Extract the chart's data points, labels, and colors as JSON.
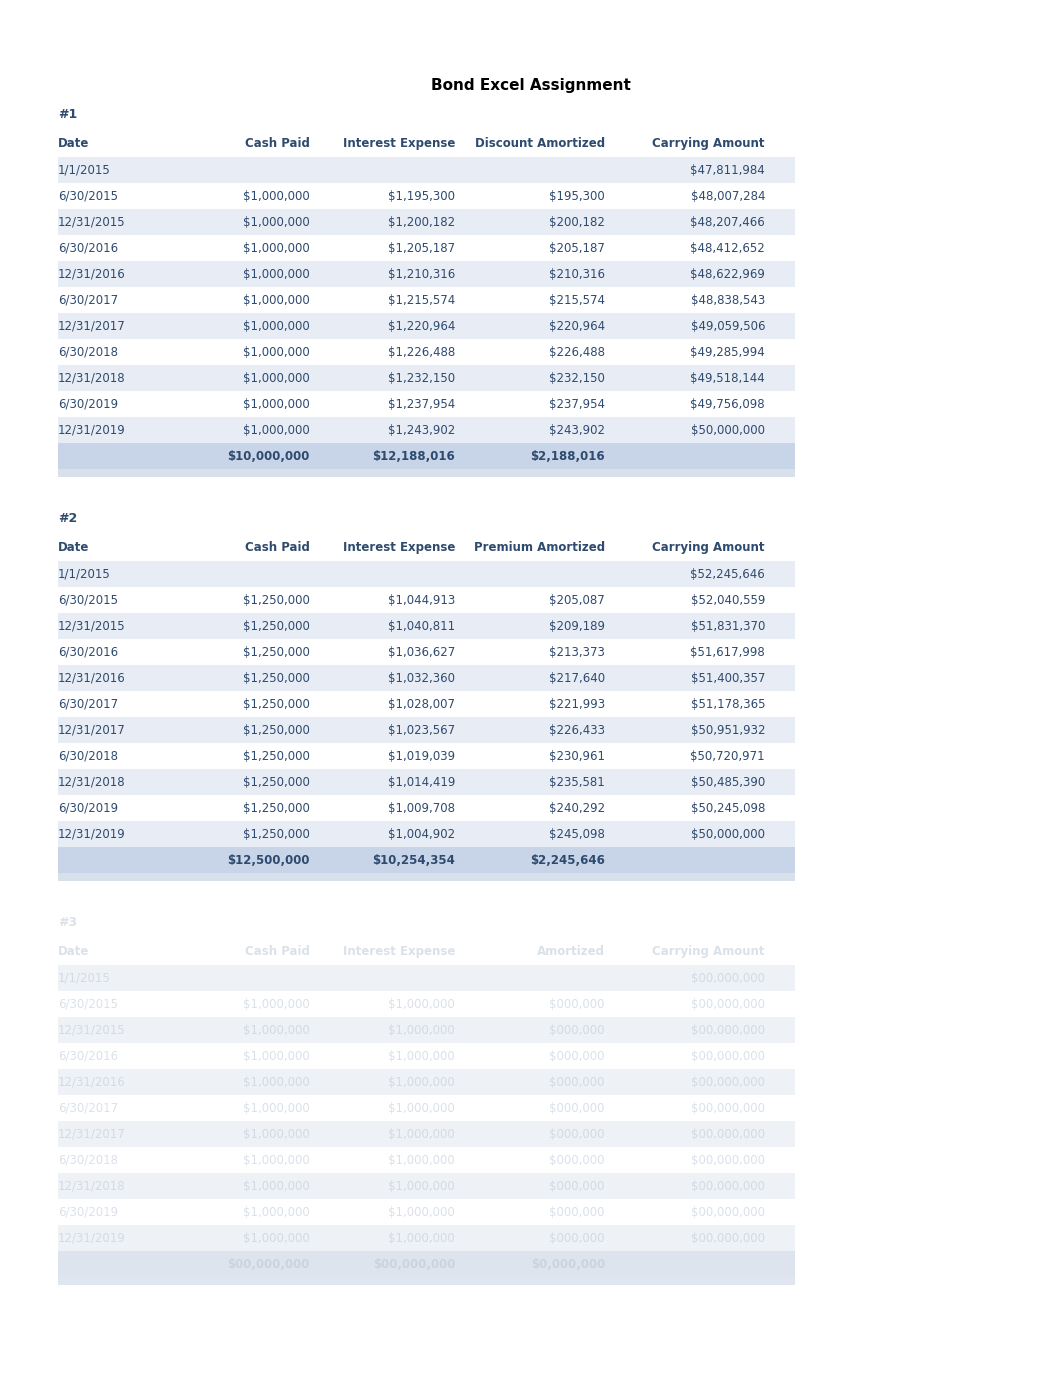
{
  "title": "Bond Excel Assignment",
  "bg_color": "#ffffff",
  "text_color": "#2e4a6e",
  "header_color": "#2e4a6e",
  "row_bg_alt": "#e8edf5",
  "row_bg_normal": "#ffffff",
  "total_row_bg": "#c8d5e8",
  "section1": {
    "label": "#1",
    "headers": [
      "Date",
      "Cash Paid",
      "",
      "Interest Expense",
      "Discount Amortized",
      "Carrying Amount"
    ],
    "rows": [
      [
        "1/1/2015",
        "",
        "",
        "",
        "",
        "$47,811,984"
      ],
      [
        "6/30/2015",
        "$1,000,000",
        "",
        "$1,195,300",
        "$195,300",
        "$48,007,284"
      ],
      [
        "12/31/2015",
        "$1,000,000",
        "",
        "$1,200,182",
        "$200,182",
        "$48,207,466"
      ],
      [
        "6/30/2016",
        "$1,000,000",
        "",
        "$1,205,187",
        "$205,187",
        "$48,412,652"
      ],
      [
        "12/31/2016",
        "$1,000,000",
        "",
        "$1,210,316",
        "$210,316",
        "$48,622,969"
      ],
      [
        "6/30/2017",
        "$1,000,000",
        "",
        "$1,215,574",
        "$215,574",
        "$48,838,543"
      ],
      [
        "12/31/2017",
        "$1,000,000",
        "",
        "$1,220,964",
        "$220,964",
        "$49,059,506"
      ],
      [
        "6/30/2018",
        "$1,000,000",
        "",
        "$1,226,488",
        "$226,488",
        "$49,285,994"
      ],
      [
        "12/31/2018",
        "$1,000,000",
        "",
        "$1,232,150",
        "$232,150",
        "$49,518,144"
      ],
      [
        "6/30/2019",
        "$1,000,000",
        "",
        "$1,237,954",
        "$237,954",
        "$49,756,098"
      ],
      [
        "12/31/2019",
        "$1,000,000",
        "",
        "$1,243,902",
        "$243,902",
        "$50,000,000"
      ]
    ],
    "totals": [
      "",
      "$10,000,000",
      "",
      "$12,188,016",
      "$2,188,016",
      ""
    ]
  },
  "section2": {
    "label": "#2",
    "headers": [
      "Date",
      "Cash Paid",
      "",
      "Interest Expense",
      "Premium Amortized",
      "Carrying Amount"
    ],
    "rows": [
      [
        "1/1/2015",
        "",
        "",
        "",
        "",
        "$52,245,646"
      ],
      [
        "6/30/2015",
        "$1,250,000",
        "",
        "$1,044,913",
        "$205,087",
        "$52,040,559"
      ],
      [
        "12/31/2015",
        "$1,250,000",
        "",
        "$1,040,811",
        "$209,189",
        "$51,831,370"
      ],
      [
        "6/30/2016",
        "$1,250,000",
        "",
        "$1,036,627",
        "$213,373",
        "$51,617,998"
      ],
      [
        "12/31/2016",
        "$1,250,000",
        "",
        "$1,032,360",
        "$217,640",
        "$51,400,357"
      ],
      [
        "6/30/2017",
        "$1,250,000",
        "",
        "$1,028,007",
        "$221,993",
        "$51,178,365"
      ],
      [
        "12/31/2017",
        "$1,250,000",
        "",
        "$1,023,567",
        "$226,433",
        "$50,951,932"
      ],
      [
        "6/30/2018",
        "$1,250,000",
        "",
        "$1,019,039",
        "$230,961",
        "$50,720,971"
      ],
      [
        "12/31/2018",
        "$1,250,000",
        "",
        "$1,014,419",
        "$235,581",
        "$50,485,390"
      ],
      [
        "6/30/2019",
        "$1,250,000",
        "",
        "$1,009,708",
        "$240,292",
        "$50,245,098"
      ],
      [
        "12/31/2019",
        "$1,250,000",
        "",
        "$1,004,902",
        "$245,098",
        "$50,000,000"
      ]
    ],
    "totals": [
      "",
      "$12,500,000",
      "",
      "$10,254,354",
      "$2,245,646",
      ""
    ]
  },
  "section3": {
    "label": "#3",
    "headers": [
      "Date",
      "Cash Paid",
      "",
      "Interest Expense",
      "Amortized",
      "Carrying Amount"
    ],
    "rows": [
      [
        "1/1/2015",
        "",
        "",
        "",
        "",
        "$00,000,000"
      ],
      [
        "6/30/2015",
        "$1,000,000",
        "",
        "$1,000,000",
        "$000,000",
        "$00,000,000"
      ],
      [
        "12/31/2015",
        "$1,000,000",
        "",
        "$1,000,000",
        "$000,000",
        "$00,000,000"
      ],
      [
        "6/30/2016",
        "$1,000,000",
        "",
        "$1,000,000",
        "$000,000",
        "$00,000,000"
      ],
      [
        "12/31/2016",
        "$1,000,000",
        "",
        "$1,000,000",
        "$000,000",
        "$00,000,000"
      ],
      [
        "6/30/2017",
        "$1,000,000",
        "",
        "$1,000,000",
        "$000,000",
        "$00,000,000"
      ],
      [
        "12/31/2017",
        "$1,000,000",
        "",
        "$1,000,000",
        "$000,000",
        "$00,000,000"
      ],
      [
        "6/30/2018",
        "$1,000,000",
        "",
        "$1,000,000",
        "$000,000",
        "$00,000,000"
      ],
      [
        "12/31/2018",
        "$1,000,000",
        "",
        "$1,000,000",
        "$000,000",
        "$00,000,000"
      ],
      [
        "6/30/2019",
        "$1,000,000",
        "",
        "$1,000,000",
        "$000,000",
        "$00,000,000"
      ],
      [
        "12/31/2019",
        "$1,000,000",
        "",
        "$1,000,000",
        "$000,000",
        "$00,000,000"
      ]
    ],
    "totals": [
      "",
      "$00,000,000",
      "",
      "$00,000,000",
      "$0,000,000",
      ""
    ]
  }
}
